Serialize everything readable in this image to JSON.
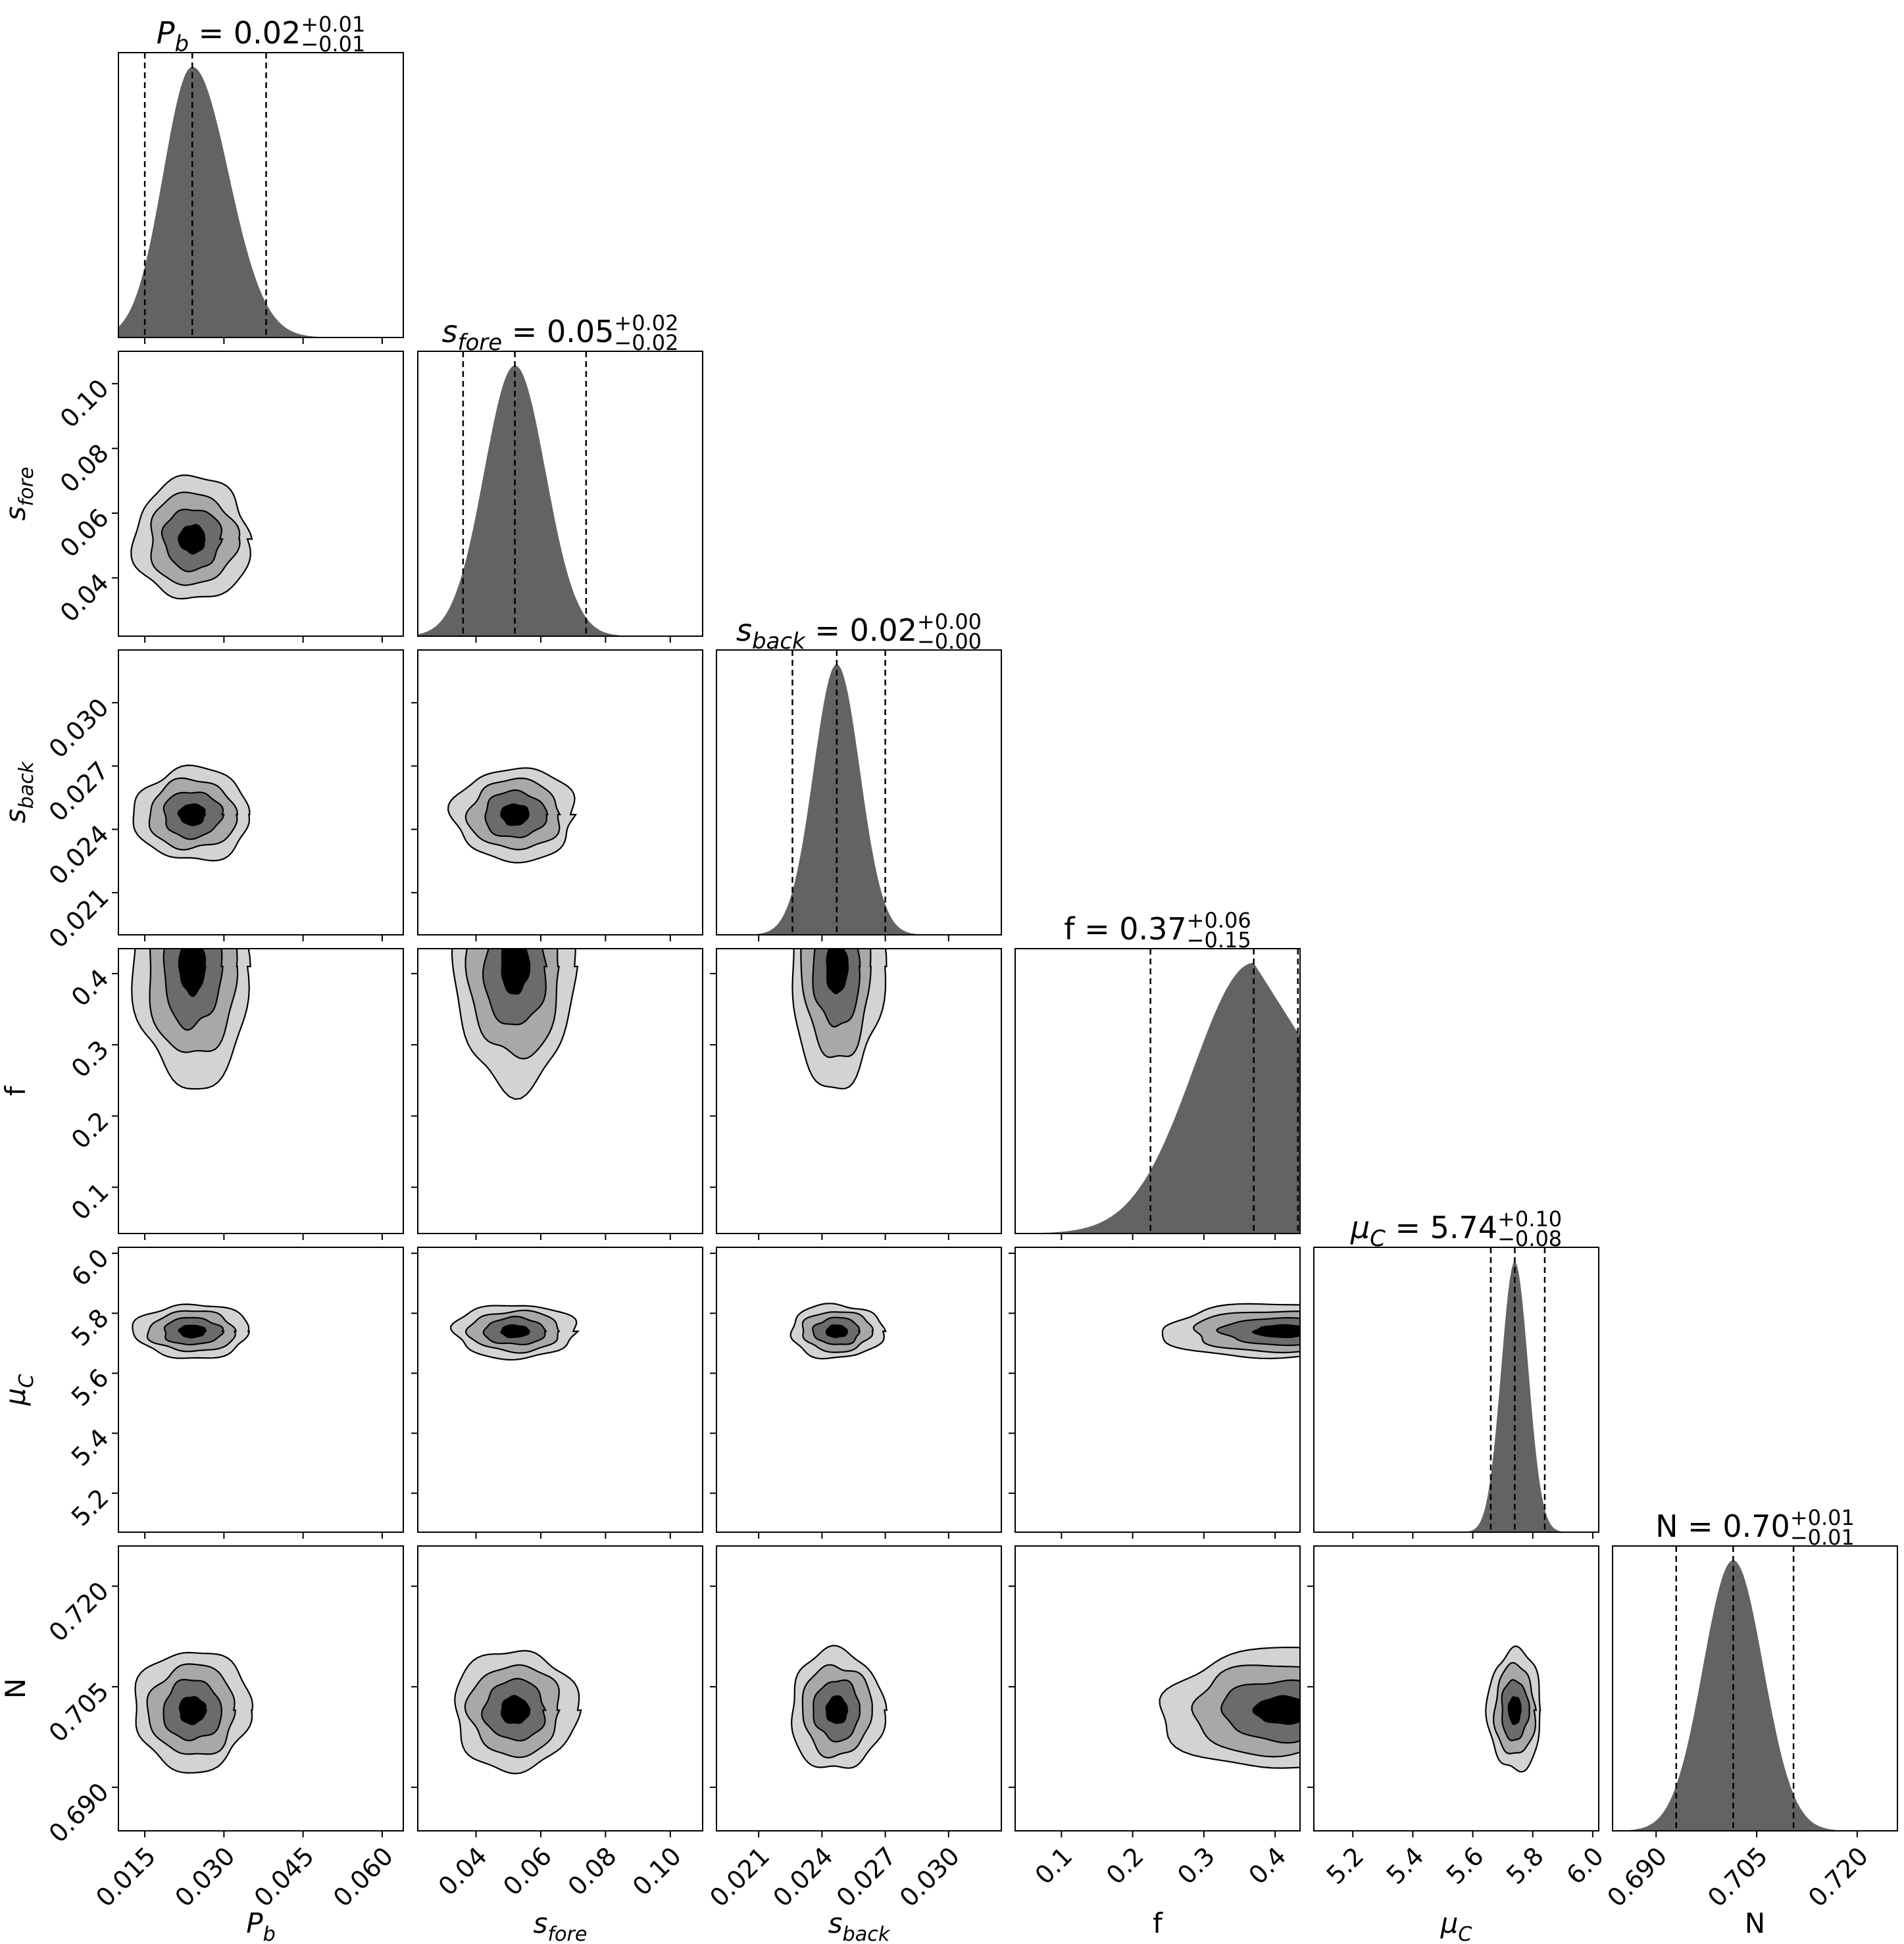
{
  "chart_data": {
    "type": "corner",
    "parameters": [
      {
        "key": "Pb",
        "axis_label": "P",
        "axis_sub": "b",
        "italic": true,
        "title_value": "0.02",
        "plus": "+0.01",
        "minus": "−0.01",
        "range": [
          0.01,
          0.064
        ],
        "ticks": [
          "0.015",
          "0.030",
          "0.045",
          "0.060"
        ],
        "tick_values": [
          0.015,
          0.03,
          0.045,
          0.06
        ],
        "median": 0.024,
        "q16": 0.015,
        "q84": 0.038,
        "sigma": 0.0055
      },
      {
        "key": "sfore",
        "axis_label": "s",
        "axis_sub": "fore",
        "italic": true,
        "title_value": "0.05",
        "plus": "+0.02",
        "minus": "−0.02",
        "range": [
          0.022,
          0.11
        ],
        "ticks": [
          "0.04",
          "0.06",
          "0.08",
          "0.10"
        ],
        "tick_values": [
          0.04,
          0.06,
          0.08,
          0.1
        ],
        "median": 0.052,
        "q16": 0.036,
        "q84": 0.074,
        "sigma": 0.0095
      },
      {
        "key": "sback",
        "axis_label": "s",
        "axis_sub": "back",
        "italic": true,
        "title_value": "0.02",
        "plus": "+0.00",
        "minus": "−0.00",
        "range": [
          0.019,
          0.0325
        ],
        "ticks": [
          "0.021",
          "0.024",
          "0.027",
          "0.030"
        ],
        "tick_values": [
          0.021,
          0.024,
          0.027,
          0.03
        ],
        "median": 0.0247,
        "q16": 0.0226,
        "q84": 0.027,
        "sigma": 0.0011
      },
      {
        "key": "f",
        "axis_label": "f",
        "axis_sub": "",
        "italic": false,
        "title_value": "0.37",
        "plus": "+0.06",
        "minus": "−0.15",
        "range": [
          0.035,
          0.435
        ],
        "ticks": [
          "0.1",
          "0.2",
          "0.3",
          "0.4"
        ],
        "tick_values": [
          0.1,
          0.2,
          0.3,
          0.4
        ],
        "median": 0.37,
        "q16": 0.225,
        "q84": 0.432,
        "sigma": 0.08
      },
      {
        "key": "muC",
        "axis_label": "μ",
        "axis_sub": "C",
        "italic": true,
        "title_value": "5.74",
        "plus": "+0.10",
        "minus": "−0.08",
        "range": [
          5.07,
          6.02
        ],
        "ticks": [
          "5.2",
          "5.4",
          "5.6",
          "5.8",
          "6.0"
        ],
        "tick_values": [
          5.2,
          5.4,
          5.6,
          5.8,
          6.0
        ],
        "median": 5.74,
        "q16": 5.66,
        "q84": 5.84,
        "sigma": 0.045
      },
      {
        "key": "N",
        "axis_label": "N",
        "axis_sub": "",
        "italic": false,
        "title_value": "0.70",
        "plus": "+0.01",
        "minus": "−0.01",
        "range": [
          0.6835,
          0.726
        ],
        "ticks": [
          "0.690",
          "0.705",
          "0.720"
        ],
        "tick_values": [
          0.69,
          0.705,
          0.72
        ],
        "median": 0.7015,
        "q16": 0.693,
        "q84": 0.7105,
        "sigma": 0.0045
      }
    ],
    "fill_colors": [
      "#d3d3d3",
      "#a8a8a8",
      "#6b6b6b",
      "#000000"
    ],
    "histogram_color": "#636363",
    "quantile_line_style": "dashed",
    "grid": false
  }
}
